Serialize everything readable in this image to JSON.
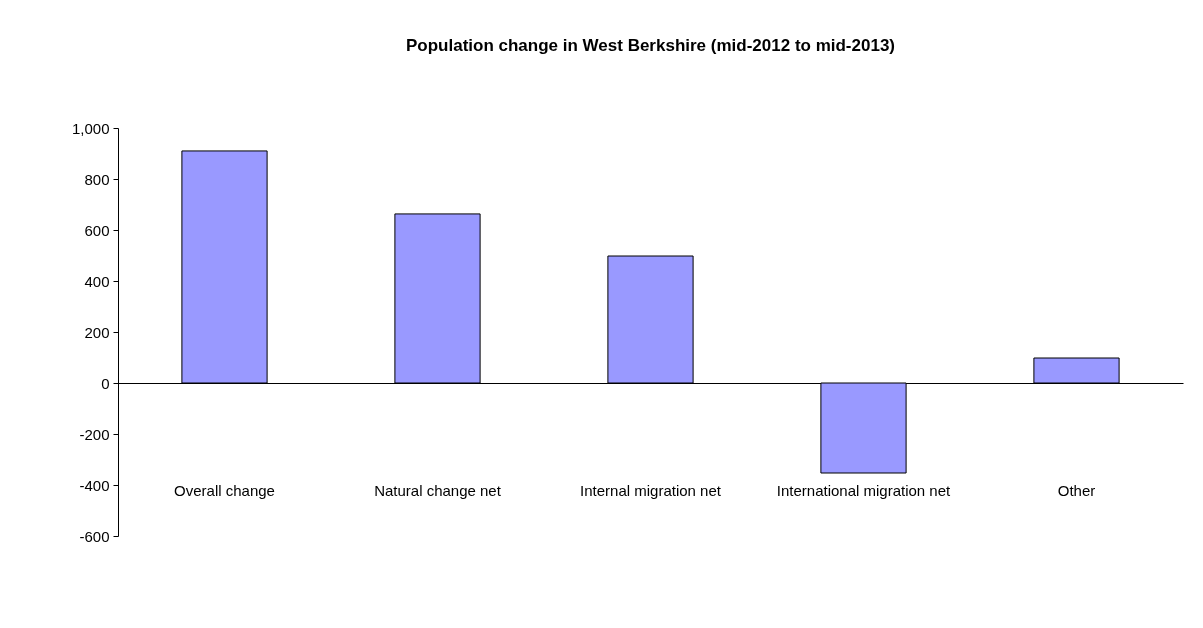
{
  "chart_data": {
    "type": "bar",
    "title": "Population change in West Berkshire (mid-2012 to mid-2013)",
    "categories": [
      "Overall change",
      "Natural change net",
      "Internal migration net",
      "International migration net",
      "Other"
    ],
    "values": [
      910,
      663,
      498,
      -353,
      98
    ],
    "color": "#9999ff",
    "ylim": [
      -600,
      1000
    ],
    "yticks": [
      -600,
      -400,
      -200,
      0,
      200,
      400,
      600,
      800,
      {
        "value": 1000,
        "label": "1,000"
      }
    ]
  }
}
